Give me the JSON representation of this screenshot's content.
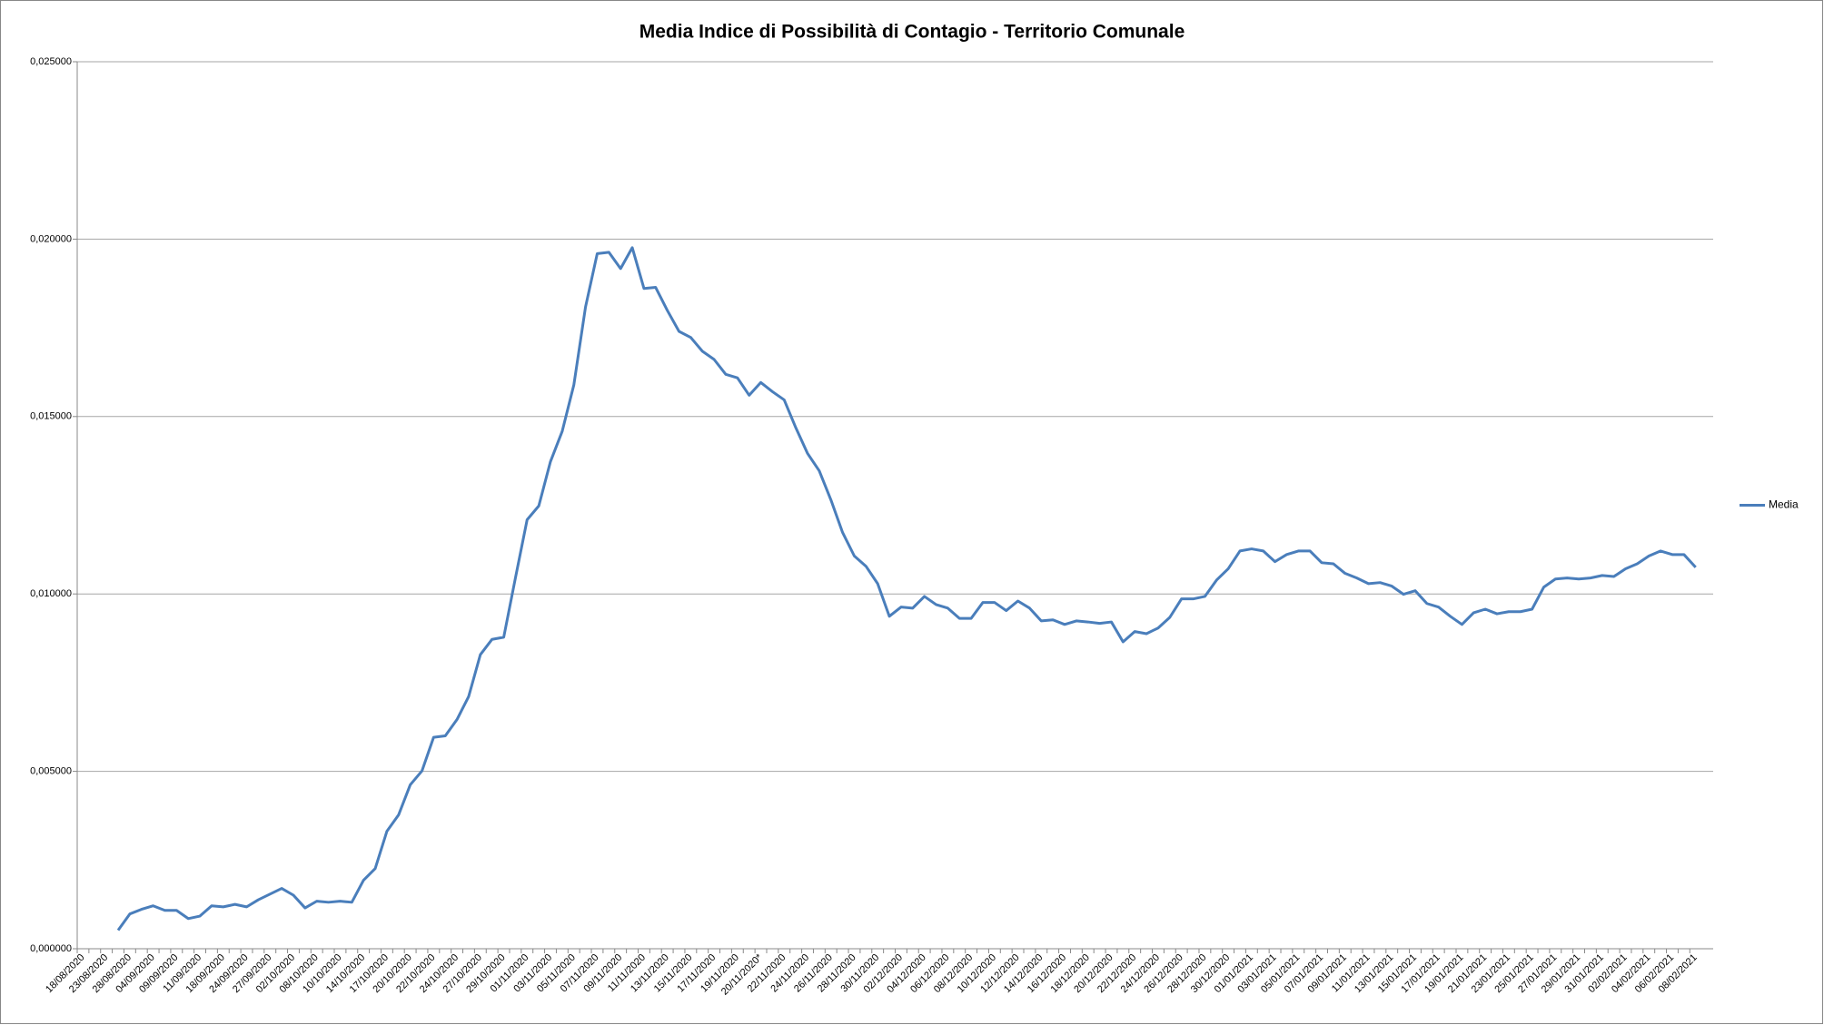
{
  "chart_data": {
    "type": "line",
    "title": "Media Indice di Possibilità di Contagio - Territorio Comunale",
    "categories": [
      "18/08/2020",
      null,
      "23/08/2020",
      null,
      "28/08/2020",
      null,
      "04/09/2020",
      null,
      "09/09/2020",
      null,
      "11/09/2020",
      null,
      "18/09/2020",
      null,
      "24/09/2020",
      null,
      "27/09/2020",
      null,
      "02/10/2020",
      null,
      "08/10/2020",
      null,
      "10/10/2020",
      null,
      "14/10/2020",
      null,
      "17/10/2020",
      null,
      "20/10/2020",
      null,
      "22/10/2020",
      null,
      "24/10/2020",
      null,
      "27/10/2020",
      null,
      "29/10/2020",
      null,
      "01/11/2020",
      null,
      "03/11/2020",
      null,
      "05/11/2020",
      null,
      "07/11/2020",
      null,
      "09/11/2020",
      null,
      "11/11/2020",
      null,
      "13/11/2020",
      null,
      "15/11/2020",
      null,
      "17/11/2020",
      null,
      "19/11/2020",
      null,
      "20/11/2020*",
      null,
      "22/11/2020",
      null,
      "24/11/2020",
      null,
      "26/11/2020",
      null,
      "28/11/2020",
      null,
      "30/11/2020",
      null,
      "02/12/2020",
      null,
      "04/12/2020",
      null,
      "06/12/2020",
      null,
      "08/12/2020",
      null,
      "10/12/2020",
      null,
      "12/12/2020",
      null,
      "14/12/2020",
      null,
      "16/12/2020",
      null,
      "18/12/2020",
      null,
      "20/12/2020",
      null,
      "22/12/2020",
      null,
      "24/12/2020",
      null,
      "26/12/2020",
      null,
      "28/12/2020",
      null,
      "30/12/2020",
      null,
      "01/01/2021",
      null,
      "03/01/2021",
      null,
      "05/01/2021",
      null,
      "07/01/2021",
      null,
      "09/01/2021",
      null,
      "11/01/2021",
      null,
      "13/01/2021",
      null,
      "15/01/2021",
      null,
      "17/01/2021",
      null,
      "19/01/2021",
      null,
      "21/01/2021",
      null,
      "23/01/2021",
      null,
      "25/01/2021",
      null,
      "27/01/2021",
      null,
      "29/01/2021",
      null,
      "31/01/2021",
      null,
      "02/02/2021",
      null,
      "04/02/2021",
      null,
      "06/02/2021",
      null,
      "08/02/2021"
    ],
    "series": [
      {
        "name": "Media",
        "color": "#4a7ebb",
        "values": [
          null,
          null,
          null,
          0.00052,
          0.00098,
          0.00111,
          0.00121,
          0.00108,
          0.00108,
          0.00085,
          0.00092,
          0.00121,
          0.00118,
          0.00125,
          0.00118,
          0.00138,
          0.00154,
          0.0017,
          0.00151,
          0.00115,
          0.00134,
          0.00131,
          0.00134,
          0.00131,
          0.00193,
          0.00226,
          0.00331,
          0.00377,
          0.00462,
          0.00501,
          0.00596,
          0.006,
          0.00646,
          0.00711,
          0.00829,
          0.00872,
          0.00878,
          0.01045,
          0.01209,
          0.01248,
          0.01373,
          0.01458,
          0.01589,
          0.01809,
          0.01959,
          0.01963,
          0.01917,
          0.01976,
          0.01861,
          0.01864,
          0.01799,
          0.0174,
          0.01723,
          0.01684,
          0.01661,
          0.01619,
          0.01609,
          0.0156,
          0.01596,
          0.0157,
          0.01547,
          0.01468,
          0.01396,
          0.01347,
          0.01265,
          0.01173,
          0.01107,
          0.01078,
          0.01029,
          0.00937,
          0.00963,
          0.0096,
          0.00993,
          0.0097,
          0.0096,
          0.00931,
          0.00931,
          0.00976,
          0.00976,
          0.00953,
          0.0098,
          0.0096,
          0.00924,
          0.00927,
          0.00914,
          0.00924,
          0.00921,
          0.00917,
          0.00921,
          0.00865,
          0.00894,
          0.00888,
          0.00904,
          0.00934,
          0.00986,
          0.00986,
          0.00993,
          0.01039,
          0.01071,
          0.01121,
          0.01127,
          0.01121,
          0.01091,
          0.01111,
          0.01121,
          0.01121,
          0.01088,
          0.01085,
          0.01058,
          0.01045,
          0.01029,
          0.01032,
          0.01022,
          0.00999,
          0.01009,
          0.00973,
          0.00963,
          0.00937,
          0.00914,
          0.00947,
          0.00957,
          0.00944,
          0.0095,
          0.0095,
          0.00957,
          0.01019,
          0.01042,
          0.01045,
          0.01042,
          0.01045,
          0.01052,
          0.01049,
          0.01071,
          0.01085,
          0.01107,
          0.01121,
          0.01111,
          0.01111,
          0.01075
        ]
      }
    ],
    "ylim": [
      0,
      0.025
    ],
    "yticks": [
      {
        "value": 0,
        "label": "0,000000"
      },
      {
        "value": 0.005,
        "label": "0,005000"
      },
      {
        "value": 0.01,
        "label": "0,010000"
      },
      {
        "value": 0.015,
        "label": "0,015000"
      },
      {
        "value": 0.02,
        "label": "0,020000"
      },
      {
        "value": 0.025,
        "label": "0,025000"
      }
    ],
    "grid": true,
    "legend": "right"
  }
}
